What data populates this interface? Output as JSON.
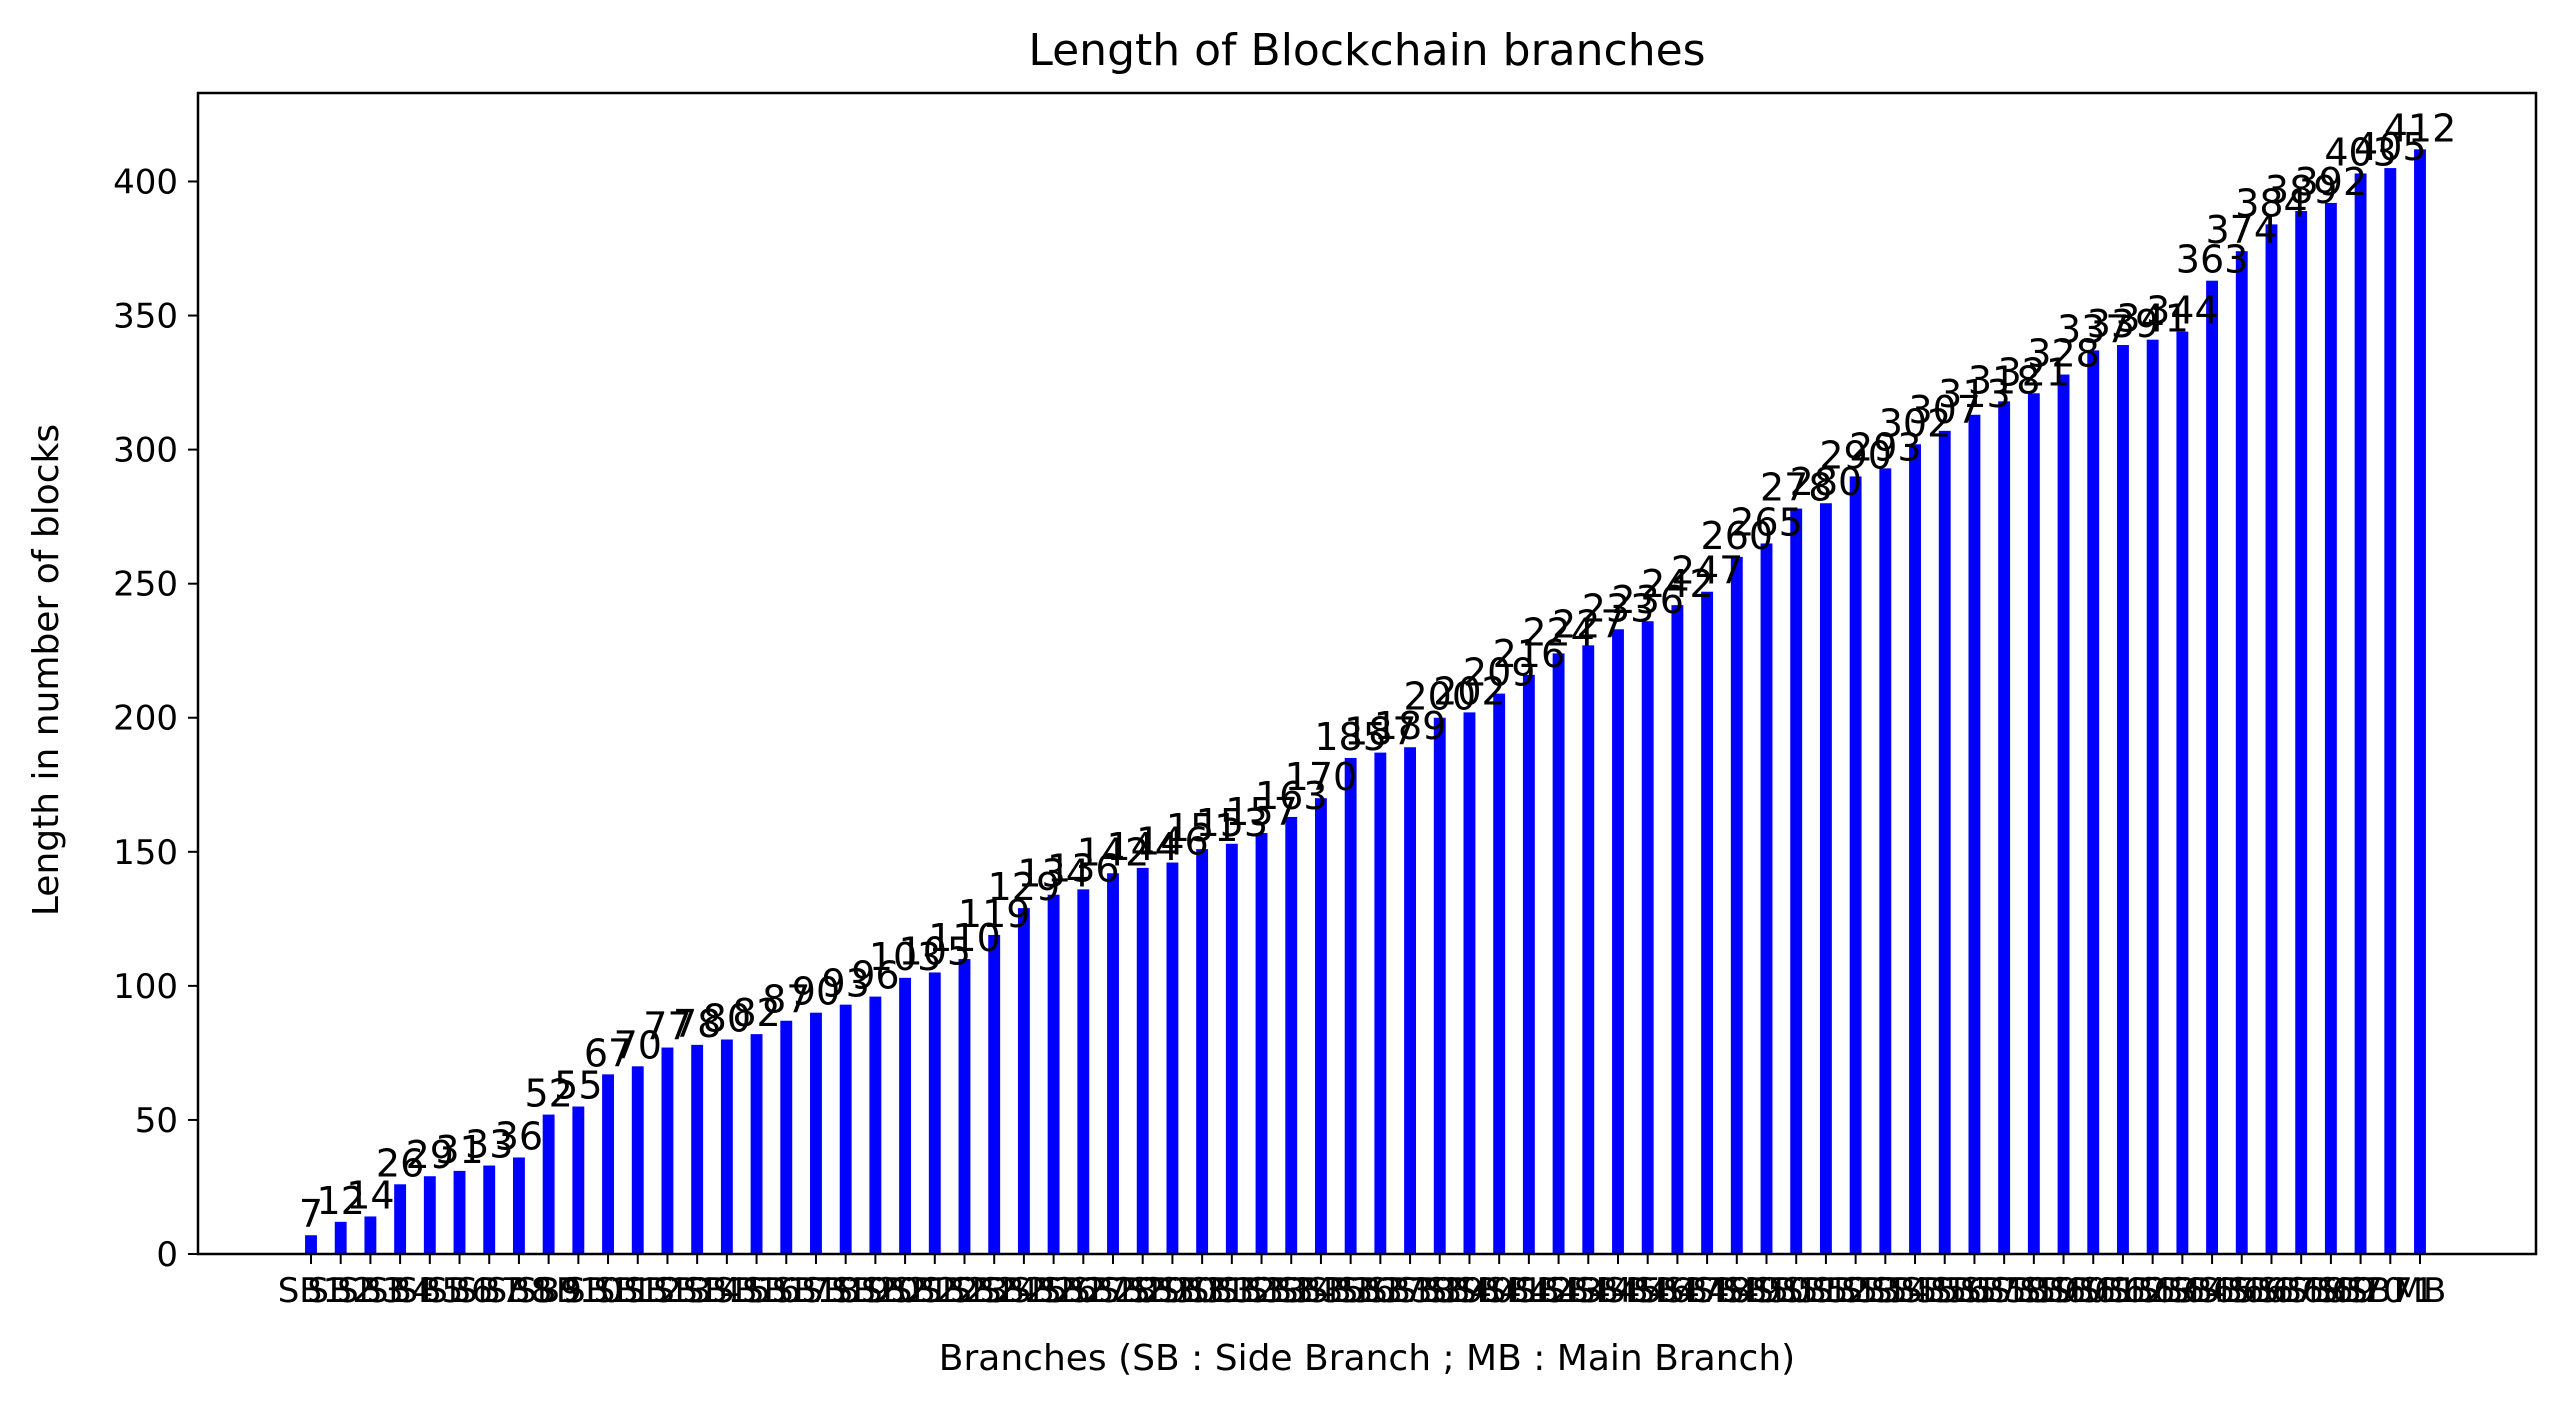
{
  "chart_data": {
    "type": "bar",
    "title": "Length of Blockchain branches",
    "xlabel": "Branches (SB : Side Branch ; MB : Main Branch)",
    "ylabel": "Length in number of blocks",
    "ylim": [
      0,
      433
    ],
    "yticks": [
      0,
      50,
      100,
      150,
      200,
      250,
      300,
      350,
      400
    ],
    "grid": false,
    "legend": "none",
    "bar_color": "#0000ff",
    "categories": [
      "SB1",
      "SB2",
      "SB3",
      "SB4",
      "SB5",
      "SB6",
      "SB7",
      "SB8",
      "SB9",
      "SB10",
      "SB11",
      "SB12",
      "SB13",
      "SB14",
      "SB15",
      "SB16",
      "SB17",
      "SB18",
      "SB19",
      "SB20",
      "SB21",
      "SB22",
      "SB23",
      "SB24",
      "SB25",
      "SB26",
      "SB27",
      "SB28",
      "SB29",
      "SB30",
      "SB31",
      "SB32",
      "SB33",
      "SB34",
      "SB35",
      "SB36",
      "SB37",
      "SB38",
      "SB39",
      "SB40",
      "SB41",
      "SB42",
      "SB43",
      "SB44",
      "SB45",
      "SB46",
      "SB47",
      "SB48",
      "SB49",
      "SB50",
      "SB51",
      "SB52",
      "SB53",
      "SB54",
      "SB55",
      "SB56",
      "SB57",
      "SB58",
      "SB59",
      "SB60",
      "SB61",
      "SB62",
      "SB63",
      "SB64",
      "SB65",
      "SB66",
      "SB67",
      "SB68",
      "SB69",
      "SB70",
      "SB71",
      "MB"
    ],
    "values": [
      7,
      12,
      14,
      26,
      29,
      31,
      33,
      36,
      52,
      55,
      67,
      70,
      77,
      78,
      80,
      82,
      87,
      90,
      93,
      96,
      103,
      105,
      110,
      119,
      129,
      134,
      136,
      142,
      144,
      146,
      151,
      153,
      157,
      163,
      170,
      185,
      187,
      189,
      200,
      202,
      209,
      216,
      224,
      227,
      233,
      236,
      242,
      247,
      260,
      265,
      278,
      280,
      290,
      293,
      302,
      307,
      313,
      318,
      321,
      328,
      337,
      339,
      341,
      344,
      363,
      374,
      384,
      389,
      392,
      403,
      405,
      412
    ]
  }
}
